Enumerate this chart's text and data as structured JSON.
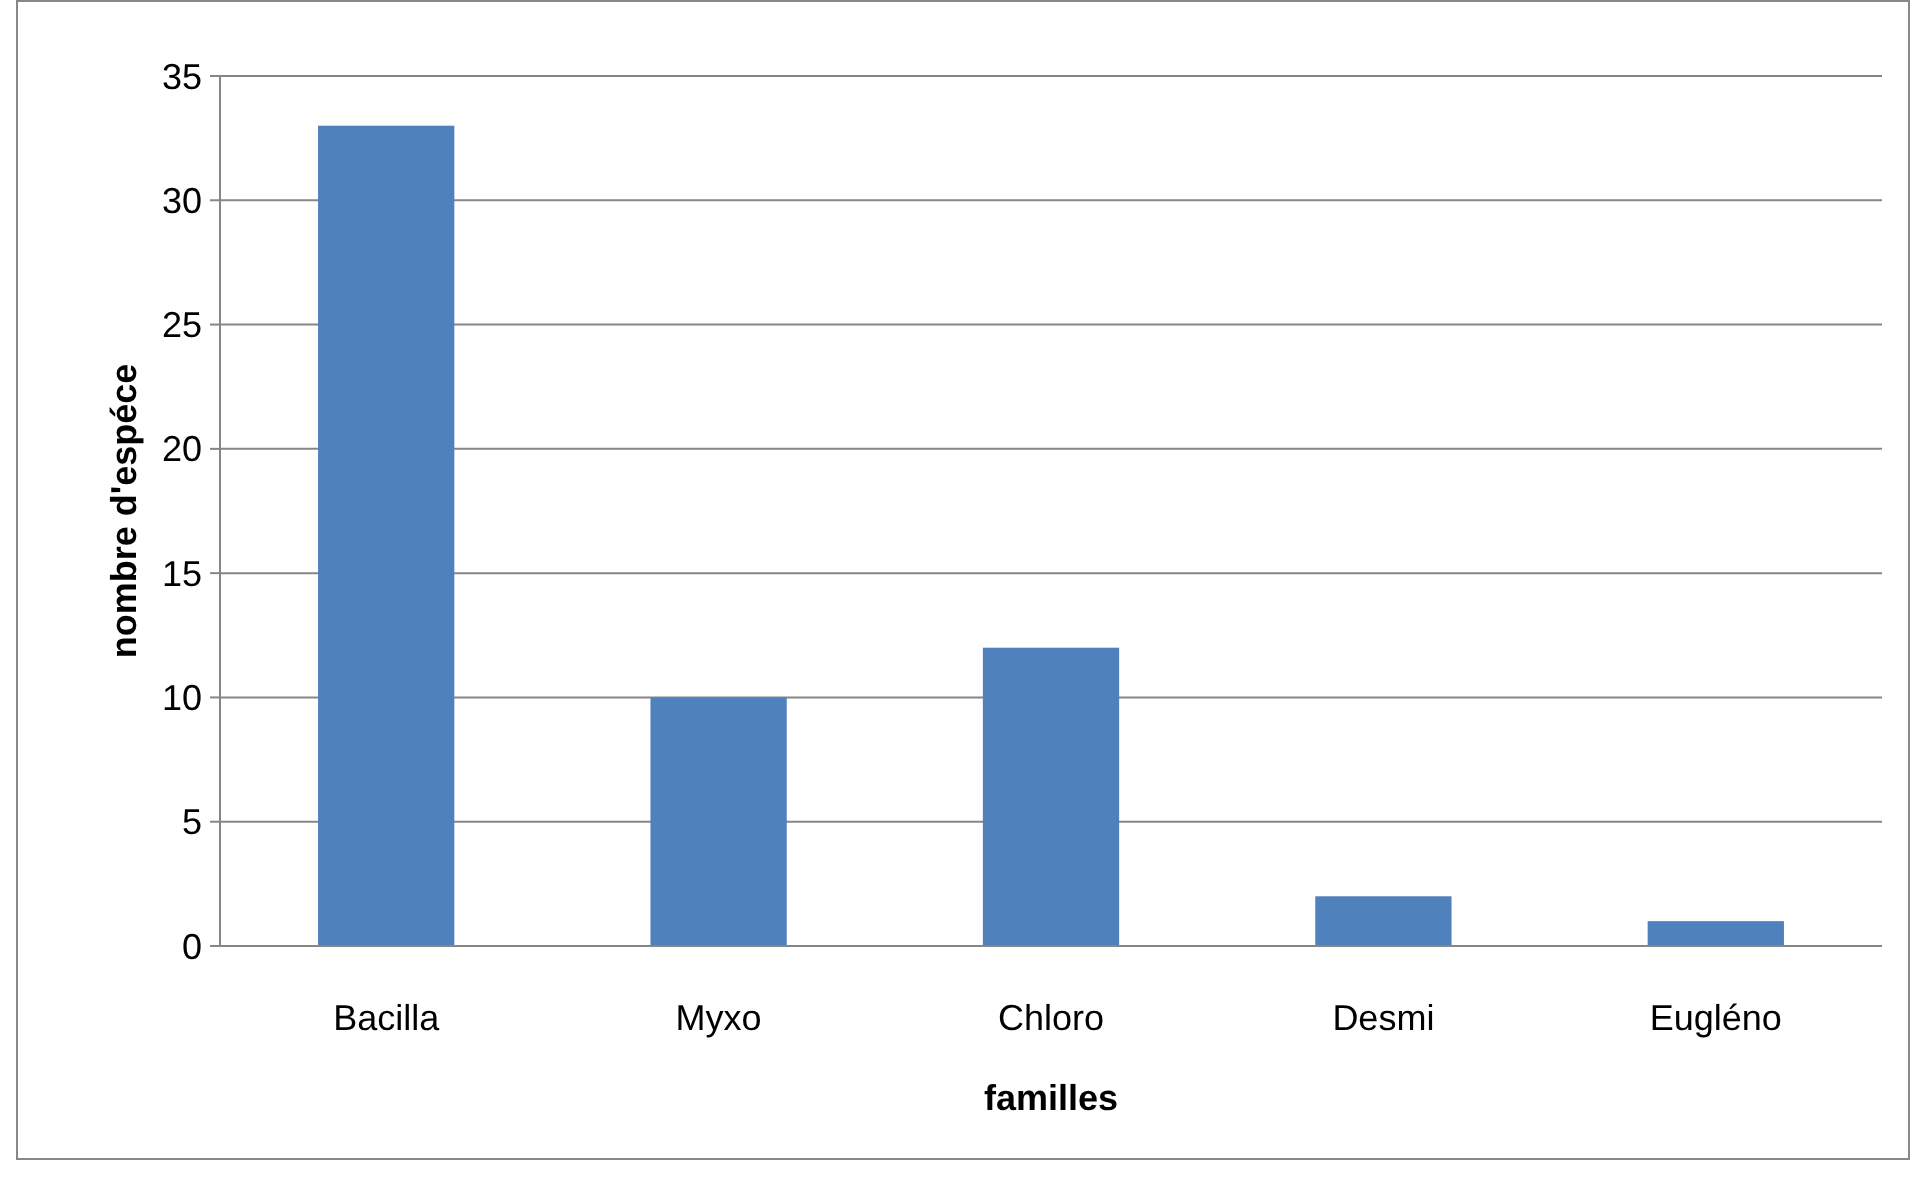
{
  "chart_data": {
    "type": "bar",
    "xlabel": "familles",
    "ylabel": "nombre d'espéce",
    "categories": [
      "Bacilla",
      "Myxo",
      "Chloro",
      "Desmi",
      "Eugléno"
    ],
    "values": [
      33,
      10,
      12,
      2,
      1
    ],
    "color": "#4f81bd",
    "ylim": [
      0,
      35
    ],
    "yticks": [
      0,
      5,
      10,
      15,
      20,
      25,
      30,
      35
    ],
    "grid": "y"
  }
}
